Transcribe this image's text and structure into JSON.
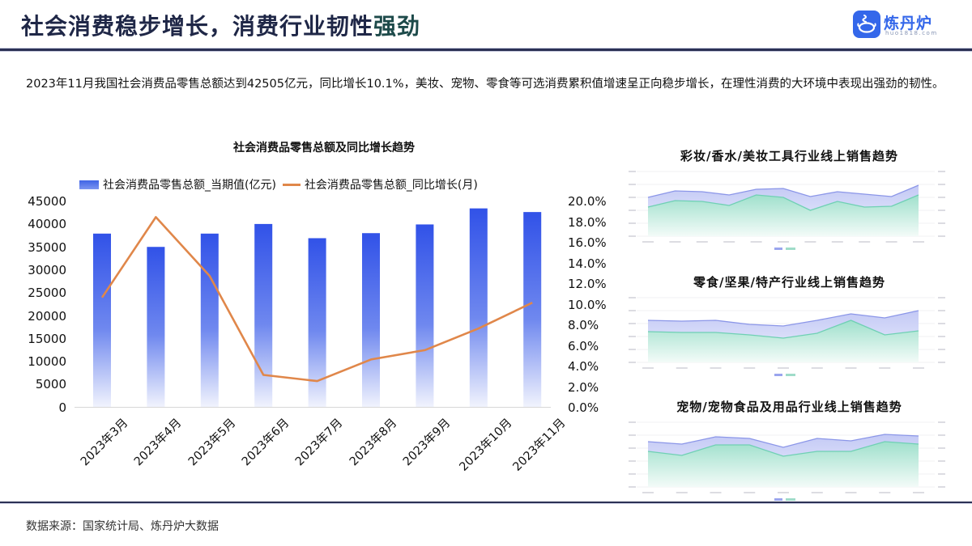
{
  "header": {
    "title_main": "社会消费稳步增长，消费行业韧性",
    "title_accent": "强劲",
    "logo_name": "炼丹炉",
    "logo_sub": "huo1818.com"
  },
  "summary": "2023年11月我国社会消费品零售总额达到42505亿元，同比增长10.1%，美妆、宠物、零食等可选消费累积值增速呈正向稳步增长，在理性消费的大环境中表现出强劲的韧性。",
  "colors": {
    "bar_top": "#3355e8",
    "bar_bottom": "#eef1fd",
    "line": "#e0874a",
    "area_total": "#c7cdf5",
    "area_sub": "#9fe3cf",
    "title": "#1f2747",
    "brand": "#3467ea"
  },
  "chart_data": [
    {
      "type": "bar+line",
      "title": "社会消费品零售总额及同比增长趋势",
      "categories": [
        "2023年3月",
        "2023年4月",
        "2023年5月",
        "2023年6月",
        "2023年7月",
        "2023年8月",
        "2023年9月",
        "2023年10月",
        "2023年11月"
      ],
      "series": [
        {
          "name": "社会消费品零售总额_当期值(亿元)",
          "type": "bar",
          "axis": "left",
          "values": [
            37800,
            34900,
            37800,
            39900,
            36800,
            37900,
            39800,
            43300,
            42505
          ]
        },
        {
          "name": "社会消费品零售总额_同比增长(月)",
          "type": "line",
          "axis": "right",
          "values": [
            10.6,
            18.4,
            12.7,
            3.1,
            2.5,
            4.6,
            5.5,
            7.6,
            10.1
          ]
        }
      ],
      "left_ticks": [
        "45000",
        "40000",
        "35000",
        "30000",
        "25000",
        "20000",
        "15000",
        "10000",
        "5000",
        "0"
      ],
      "right_ticks": [
        "20.0%",
        "18.0%",
        "16.0%",
        "14.0%",
        "12.0%",
        "10.0%",
        "8.0%",
        "6.0%",
        "4.0%",
        "2.0%",
        "0.0%"
      ],
      "ylim_left": [
        0,
        45000
      ],
      "ylim_right": [
        0,
        20
      ],
      "legend_position": "top"
    },
    {
      "type": "area",
      "title": "彩妆/香水/美妆工具行业线上销售趋势",
      "series": [
        {
          "name": "total",
          "values": [
            58,
            66,
            65,
            61,
            68,
            69,
            59,
            65,
            62,
            59,
            73
          ]
        },
        {
          "name": "sub",
          "values": [
            46,
            54,
            53,
            48,
            61,
            58,
            42,
            53,
            46,
            47,
            61
          ]
        }
      ]
    },
    {
      "type": "area",
      "title": "零食/坚果/特产行业线上销售趋势",
      "series": [
        {
          "name": "total",
          "values": [
            62,
            61,
            62,
            57,
            55,
            62,
            70,
            65,
            74
          ]
        },
        {
          "name": "sub",
          "values": [
            48,
            47,
            47,
            44,
            40,
            46,
            62,
            44,
            49
          ]
        }
      ]
    },
    {
      "type": "area",
      "title": "宠物/宠物食品及用品行业线上销售趋势",
      "series": [
        {
          "name": "total",
          "values": [
            66,
            63,
            72,
            70,
            59,
            70,
            67,
            75,
            73
          ]
        },
        {
          "name": "sub",
          "values": [
            54,
            49,
            62,
            62,
            48,
            54,
            54,
            66,
            63
          ]
        }
      ]
    }
  ],
  "footer": {
    "source": "数据来源：国家统计局、炼丹炉大数据"
  }
}
